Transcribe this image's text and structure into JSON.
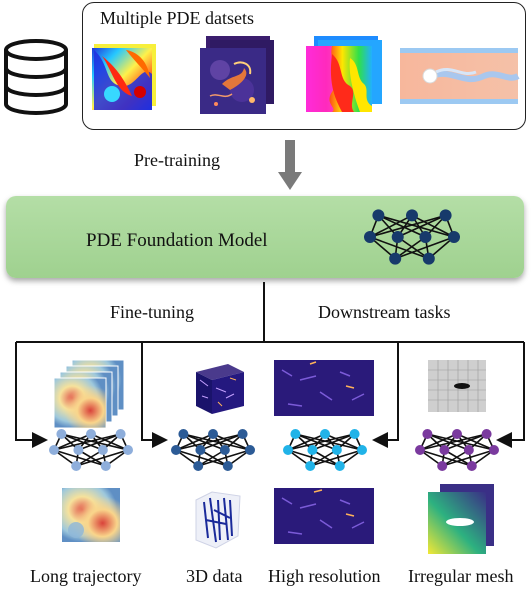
{
  "datasets": {
    "title": "Multiple PDE datsets",
    "icon": "database-icon"
  },
  "pretraining_label": "Pre-training",
  "model": {
    "title": "PDE Foundation Model",
    "network_icon": "neural-network-icon",
    "node_color": "#173a6b"
  },
  "finetuning_label": "Fine-tuning",
  "downstream_label": "Downstream tasks",
  "tasks": [
    {
      "label": "Long trajectory",
      "node_color": "#8eaedb"
    },
    {
      "label": "3D data",
      "node_color": "#2c5b96"
    },
    {
      "label": "High resolution",
      "node_color": "#21b3e8"
    },
    {
      "label": "Irregular mesh",
      "node_color": "#7a3a9e"
    }
  ]
}
